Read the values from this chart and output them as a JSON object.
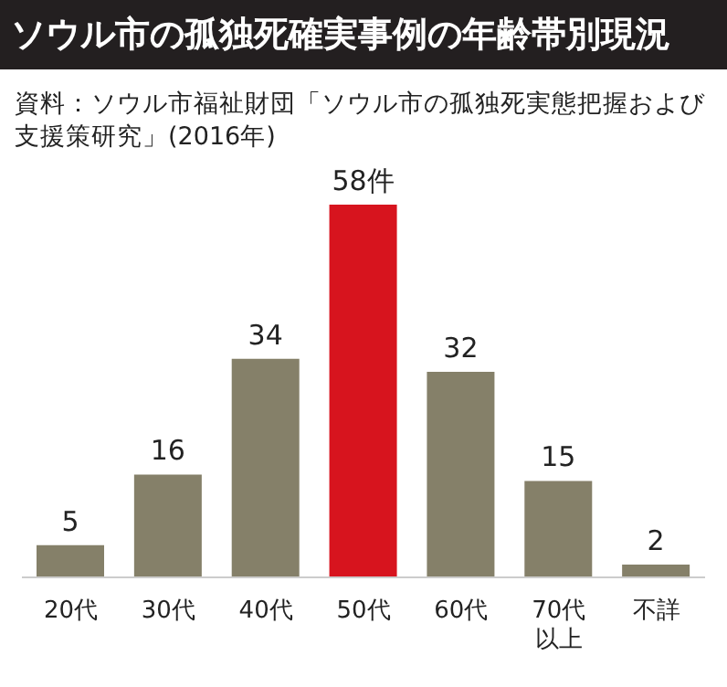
{
  "chart_data": {
    "type": "bar",
    "title": "ソウル市の孤独死確実事例の年齢帯別現況",
    "subtitle": "資料：ソウル市福祉財団「ソウル市の孤独死実態把握および支援策研究」(2016年)",
    "categories": [
      "20代",
      "30代",
      "40代",
      "50代",
      "60代",
      "70代以上",
      "不詳"
    ],
    "values": [
      5,
      16,
      34,
      58,
      32,
      15,
      2
    ],
    "colors": [
      "#858069",
      "#858069",
      "#858069",
      "#d7141e",
      "#858069",
      "#858069",
      "#858069"
    ],
    "value_labels": [
      "5",
      "16",
      "34",
      "58件",
      "32",
      "15",
      "2"
    ]
  }
}
